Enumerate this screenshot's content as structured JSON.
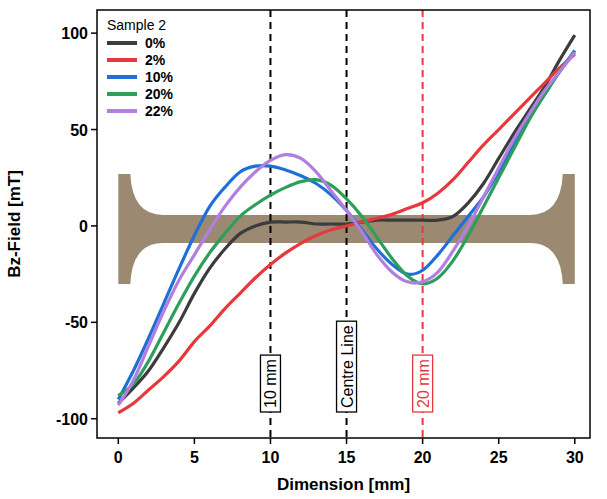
{
  "chart_data": {
    "type": "line",
    "x_label": "Dimension [mm]",
    "y_label": "Bz-Field [mT]",
    "legend_title": "Sample 2",
    "legend": "top-left",
    "grid": false,
    "xlim": [
      -1.4,
      31
    ],
    "ylim": [
      -110,
      112
    ],
    "xticks": [
      0,
      5,
      10,
      15,
      20,
      25,
      30
    ],
    "yticks": [
      -100,
      -50,
      0,
      50,
      100
    ],
    "x": [
      0,
      1,
      2,
      3,
      4,
      5,
      6,
      7,
      8,
      9,
      10,
      11,
      12,
      13,
      14,
      15,
      16,
      17,
      18,
      19,
      20,
      21,
      22,
      23,
      24,
      25,
      26,
      27,
      28,
      29,
      30
    ],
    "series": [
      {
        "name": "0%",
        "color": "#3c3c3c",
        "values": [
          -92,
          -84,
          -75,
          -63,
          -50,
          -35,
          -22,
          -12,
          -4,
          0,
          2,
          2,
          2,
          1,
          1,
          1,
          2,
          3,
          3,
          3,
          3,
          3,
          5,
          12,
          22,
          35,
          48,
          60,
          72,
          86,
          99
        ]
      },
      {
        "name": "2%",
        "color": "#e8383d",
        "values": [
          -97,
          -92,
          -85,
          -78,
          -70,
          -60,
          -52,
          -43,
          -35,
          -27,
          -20,
          -14,
          -9,
          -5,
          -2,
          0,
          2,
          4,
          6,
          9,
          12,
          17,
          24,
          33,
          42,
          50,
          58,
          66,
          74,
          82,
          89
        ]
      },
      {
        "name": "10%",
        "color": "#1f6fd6",
        "values": [
          -90,
          -75,
          -58,
          -40,
          -22,
          -5,
          10,
          20,
          28,
          31,
          31,
          29,
          26,
          22,
          16,
          8,
          -2,
          -12,
          -20,
          -25,
          -23,
          -15,
          -5,
          5,
          15,
          28,
          42,
          56,
          68,
          80,
          91
        ]
      },
      {
        "name": "20%",
        "color": "#2e9e5b",
        "values": [
          -88,
          -82,
          -70,
          -55,
          -40,
          -26,
          -14,
          -4,
          5,
          11,
          16,
          20,
          23,
          24,
          21,
          14,
          5,
          -6,
          -17,
          -26,
          -30,
          -27,
          -18,
          -5,
          10,
          25,
          40,
          55,
          68,
          80,
          90
        ]
      },
      {
        "name": "22%",
        "color": "#b07fe0",
        "values": [
          -93,
          -80,
          -62,
          -44,
          -28,
          -15,
          -2,
          10,
          20,
          28,
          34,
          37,
          35,
          28,
          18,
          8,
          -3,
          -15,
          -24,
          -29,
          -29,
          -24,
          -13,
          0,
          15,
          30,
          45,
          58,
          70,
          80,
          90
        ]
      }
    ],
    "annotations": [
      {
        "x": 10,
        "text": "10 mm",
        "color": "#000000"
      },
      {
        "x": 15,
        "text": "Centre Line",
        "color": "#000000"
      },
      {
        "x": 20,
        "text": "20 mm",
        "color": "#e8383d"
      }
    ]
  }
}
